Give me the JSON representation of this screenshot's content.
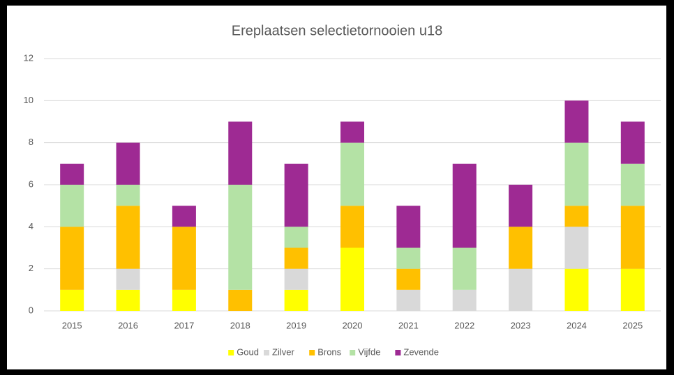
{
  "chart_data": {
    "type": "stacked_bar",
    "title": "Ereplaatsen selectietornooien u18",
    "categories": [
      "2015",
      "2016",
      "2017",
      "2018",
      "2019",
      "2020",
      "2021",
      "2022",
      "2023",
      "2024",
      "2025"
    ],
    "series": [
      {
        "name": "Goud",
        "color": "#ffff00",
        "values": [
          1,
          1,
          1,
          0,
          1,
          3,
          0,
          0,
          0,
          2,
          2
        ]
      },
      {
        "name": "Zilver",
        "color": "#d9d9d9",
        "values": [
          0,
          1,
          0,
          0,
          1,
          0,
          1,
          1,
          2,
          2,
          0
        ]
      },
      {
        "name": "Brons",
        "color": "#ffc000",
        "values": [
          3,
          3,
          3,
          1,
          1,
          2,
          1,
          0,
          2,
          1,
          3
        ]
      },
      {
        "name": "Vijfde",
        "color": "#b4e2a5",
        "values": [
          2,
          1,
          0,
          5,
          1,
          3,
          1,
          2,
          0,
          3,
          2
        ]
      },
      {
        "name": "Zevende",
        "color": "#9e2a93",
        "values": [
          1,
          2,
          1,
          3,
          3,
          1,
          2,
          4,
          2,
          2,
          2
        ]
      }
    ],
    "ylim": [
      0,
      12
    ],
    "yticks": [
      0,
      2,
      4,
      6,
      8,
      10,
      12
    ],
    "grid": true,
    "legend": "bottom"
  }
}
